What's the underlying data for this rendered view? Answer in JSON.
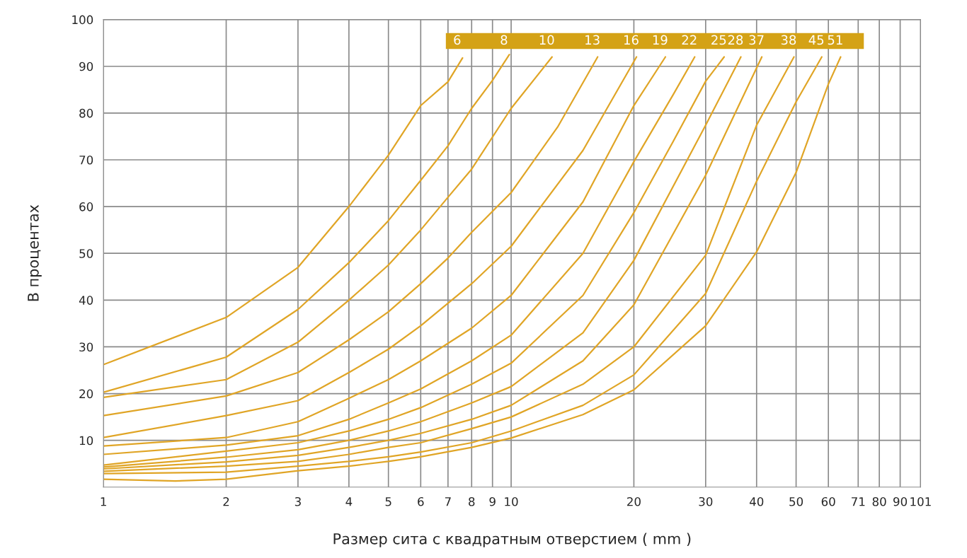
{
  "chart_data": {
    "type": "line",
    "xlabel": "Размер сита с квадратным отверстием ( mm )",
    "ylabel": "В процентах",
    "log": "x",
    "xlim": [
      1,
      101
    ],
    "ylim": [
      0,
      100
    ],
    "xticks": [
      1,
      2,
      3,
      4,
      5,
      6,
      7,
      8,
      9,
      10,
      20,
      30,
      40,
      50,
      60,
      71,
      80,
      90,
      101
    ],
    "yticks": [
      10,
      20,
      30,
      40,
      50,
      60,
      70,
      80,
      90,
      100
    ],
    "grid": true,
    "legend": false,
    "marker": "none",
    "line_style": "solid",
    "series": [
      {
        "name": "6",
        "color": "#e0a526",
        "x": [
          1,
          2,
          3,
          4,
          5,
          6,
          7,
          7.6
        ],
        "values": [
          26.2,
          36.3,
          47,
          60,
          71,
          81.6,
          86.7,
          91.8
        ]
      },
      {
        "name": "8",
        "color": "#e0a526",
        "x": [
          1,
          2,
          3,
          4,
          5,
          6,
          7,
          8,
          9,
          9.9
        ],
        "values": [
          20.3,
          27.8,
          38,
          48,
          57,
          65.6,
          73,
          81,
          87,
          92.5
        ]
      },
      {
        "name": "10",
        "color": "#e0a526",
        "x": [
          1,
          2,
          3,
          4,
          5,
          6,
          7,
          8,
          10,
          12.6
        ],
        "values": [
          19.2,
          23,
          31,
          40,
          47.5,
          55,
          62,
          68,
          81,
          92
        ]
      },
      {
        "name": "13",
        "color": "#e0a526",
        "x": [
          1,
          2,
          3,
          4,
          5,
          6,
          7,
          8,
          10,
          13,
          16.3
        ],
        "values": [
          15.3,
          19.5,
          24.5,
          31.5,
          37.5,
          43.5,
          49,
          54.5,
          63,
          77,
          92
        ]
      },
      {
        "name": "16",
        "color": "#e0a526",
        "x": [
          1,
          2,
          3,
          4,
          5,
          6,
          8,
          10,
          15,
          20.3
        ],
        "values": [
          10.6,
          15.3,
          18.5,
          24.5,
          29.5,
          34.5,
          43.5,
          51.5,
          72,
          92
        ]
      },
      {
        "name": "19",
        "color": "#e0a526",
        "x": [
          1,
          2,
          3,
          4,
          5,
          6,
          8,
          10,
          15,
          20,
          23.9
        ],
        "values": [
          8.8,
          10.6,
          14,
          19,
          23,
          27,
          34,
          41,
          61,
          81.6,
          92
        ]
      },
      {
        "name": "22",
        "color": "#e0a526",
        "x": [
          1,
          2,
          3,
          4,
          5,
          6,
          8,
          10,
          15,
          20,
          25,
          28.2
        ],
        "values": [
          7.0,
          9.0,
          11,
          14.5,
          18,
          21,
          27,
          32.5,
          50,
          69.6,
          84,
          92
        ]
      },
      {
        "name": "25",
        "color": "#e0a526",
        "x": [
          1,
          2,
          3,
          4,
          5,
          6,
          8,
          10,
          15,
          20,
          25,
          30,
          33.3
        ],
        "values": [
          4.7,
          7.7,
          9.5,
          12,
          14.5,
          17,
          22,
          26.5,
          41,
          58.7,
          74,
          86.8,
          92
        ]
      },
      {
        "name": "28",
        "color": "#e0a526",
        "x": [
          1,
          2,
          3,
          4,
          5,
          6,
          8,
          10,
          15,
          20,
          30,
          36.6
        ],
        "values": [
          4.3,
          6.4,
          8,
          10,
          12,
          14,
          18,
          21.5,
          33,
          48.5,
          77.4,
          92
        ]
      },
      {
        "name": "37",
        "color": "#e0a526",
        "x": [
          1,
          2,
          3,
          4,
          5,
          6,
          8,
          10,
          15,
          20,
          30,
          41.2
        ],
        "values": [
          3.9,
          5.4,
          6.8,
          8.5,
          10,
          11.5,
          14.5,
          17.5,
          27,
          39,
          66.7,
          92
        ]
      },
      {
        "name": "38",
        "color": "#e0a526",
        "x": [
          1,
          2,
          3,
          4,
          5,
          6,
          8,
          10,
          15,
          20,
          30,
          40,
          49.4
        ],
        "values": [
          3.4,
          4.5,
          5.5,
          7,
          8.5,
          9.5,
          12.5,
          15,
          22,
          30,
          49.6,
          77.4,
          92
        ]
      },
      {
        "name": "45",
        "color": "#e0a526",
        "x": [
          1,
          2,
          3,
          4,
          5,
          6,
          8,
          10,
          15,
          20,
          30,
          40,
          50,
          57.8
        ],
        "values": [
          2.9,
          3.2,
          4.5,
          5.5,
          6.5,
          7.5,
          9.5,
          12,
          17.5,
          24,
          41.4,
          65.4,
          82.4,
          92
        ]
      },
      {
        "name": "51",
        "color": "#e0a526",
        "x": [
          1,
          1.5,
          2,
          3,
          4,
          5,
          6,
          8,
          10,
          15,
          20,
          30,
          40,
          50,
          60,
          64.3
        ],
        "values": [
          1.7,
          1.3,
          1.7,
          3.5,
          4.5,
          5.5,
          6.5,
          8.5,
          10.5,
          15.5,
          20.8,
          34.5,
          50.3,
          67.3,
          86.2,
          92
        ]
      }
    ]
  }
}
